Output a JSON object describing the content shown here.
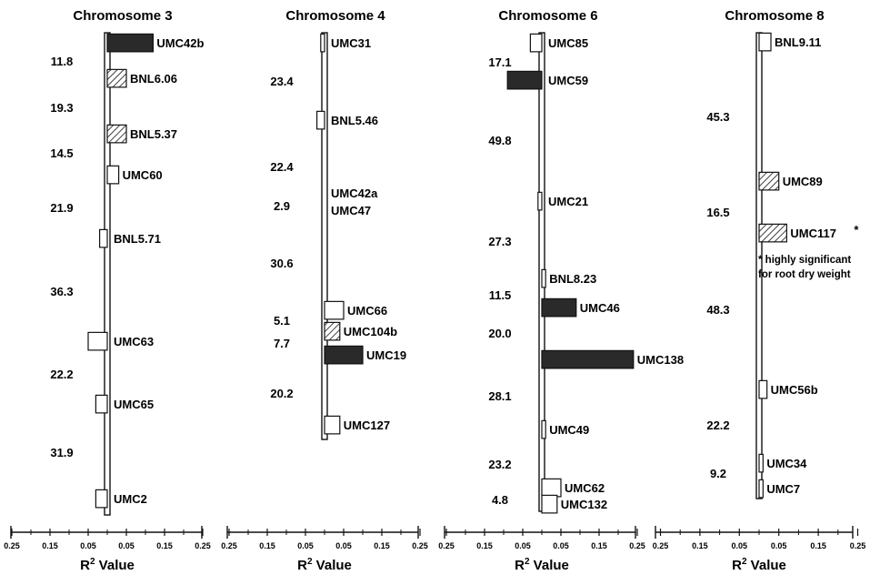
{
  "colors": {
    "ink": "#111111",
    "solid_fill": "#2a2a2a",
    "hatch": "#111111"
  },
  "x_axis": {
    "label_main": "R",
    "label_sup": "2",
    "label_rest": " Value",
    "ticks": [
      "0.25",
      "0.15",
      "0.05",
      "0.05",
      "0.15",
      "0.25"
    ],
    "tick_values": [
      -0.25,
      -0.15,
      -0.05,
      0.05,
      0.15,
      0.25
    ]
  },
  "chromosomes": [
    {
      "title": "Chromosome 3",
      "intervals": [
        "11.8",
        "19.3",
        "14.5",
        "21.9",
        "36.3",
        "22.2",
        "31.9"
      ],
      "markers": [
        {
          "label": "UMC42b",
          "value": 0.12,
          "fill": "solid"
        },
        {
          "label": "BNL6.06",
          "value": 0.05,
          "fill": "hatch"
        },
        {
          "label": "BNL5.37",
          "value": 0.05,
          "fill": "hatch"
        },
        {
          "label": "UMC60",
          "value": 0.03,
          "fill": "open"
        },
        {
          "label": "BNL5.71",
          "value": -0.02,
          "fill": "open"
        },
        {
          "label": "UMC63",
          "value": -0.05,
          "fill": "open"
        },
        {
          "label": "UMC65",
          "value": -0.03,
          "fill": "open"
        },
        {
          "label": "UMC2",
          "value": -0.03,
          "fill": "open"
        }
      ]
    },
    {
      "title": "Chromosome 4",
      "intervals": [
        "23.4",
        "22.4",
        "2.9",
        "30.6",
        "5.1",
        "7.7",
        "20.2"
      ],
      "markers": [
        {
          "label": "UMC31",
          "value": -0.01,
          "fill": "open"
        },
        {
          "label": "BNL5.46",
          "value": -0.02,
          "fill": "open"
        },
        {
          "label": "UMC42a",
          "value": 0,
          "fill": "none"
        },
        {
          "label": "UMC47",
          "value": 0,
          "fill": "none"
        },
        {
          "label": "UMC66",
          "value": 0.05,
          "fill": "open"
        },
        {
          "label": "UMC104b",
          "value": 0.04,
          "fill": "hatch"
        },
        {
          "label": "UMC19",
          "value": 0.1,
          "fill": "solid"
        },
        {
          "label": "UMC127",
          "value": 0.04,
          "fill": "open"
        }
      ]
    },
    {
      "title": "Chromosome 6",
      "intervals": [
        "17.1",
        "49.8",
        "27.3",
        "11.5",
        "20.0",
        "28.1",
        "23.2",
        "4.8"
      ],
      "markers": [
        {
          "label": "UMC85",
          "value": -0.03,
          "fill": "open"
        },
        {
          "label": "UMC59",
          "value": -0.09,
          "fill": "solid"
        },
        {
          "label": "UMC21",
          "value": -0.01,
          "fill": "open"
        },
        {
          "label": "BNL8.23",
          "value": 0.01,
          "fill": "open"
        },
        {
          "label": "UMC46",
          "value": 0.09,
          "fill": "solid"
        },
        {
          "label": "UMC138",
          "value": 0.24,
          "fill": "solid"
        },
        {
          "label": "UMC49",
          "value": 0.01,
          "fill": "open"
        },
        {
          "label": "UMC62",
          "value": 0.05,
          "fill": "open"
        },
        {
          "label": "UMC132",
          "value": 0.04,
          "fill": "open"
        }
      ]
    },
    {
      "title": "Chromosome 8",
      "intervals": [
        "45.3",
        "16.5",
        "48.3",
        "22.2",
        "9.2"
      ],
      "markers": [
        {
          "label": "BNL9.11",
          "value": 0.03,
          "fill": "open"
        },
        {
          "label": "UMC89",
          "value": 0.05,
          "fill": "hatch"
        },
        {
          "label": "UMC117",
          "value": 0.07,
          "fill": "hatch"
        },
        {
          "label": "UMC56b",
          "value": 0.02,
          "fill": "open"
        },
        {
          "label": "UMC34",
          "value": 0.01,
          "fill": "open"
        },
        {
          "label": "UMC7",
          "value": 0.01,
          "fill": "open"
        }
      ]
    }
  ],
  "footnote": {
    "marker_asterisk": "*",
    "line1": "* highly significant",
    "line2": "for root dry weight"
  }
}
